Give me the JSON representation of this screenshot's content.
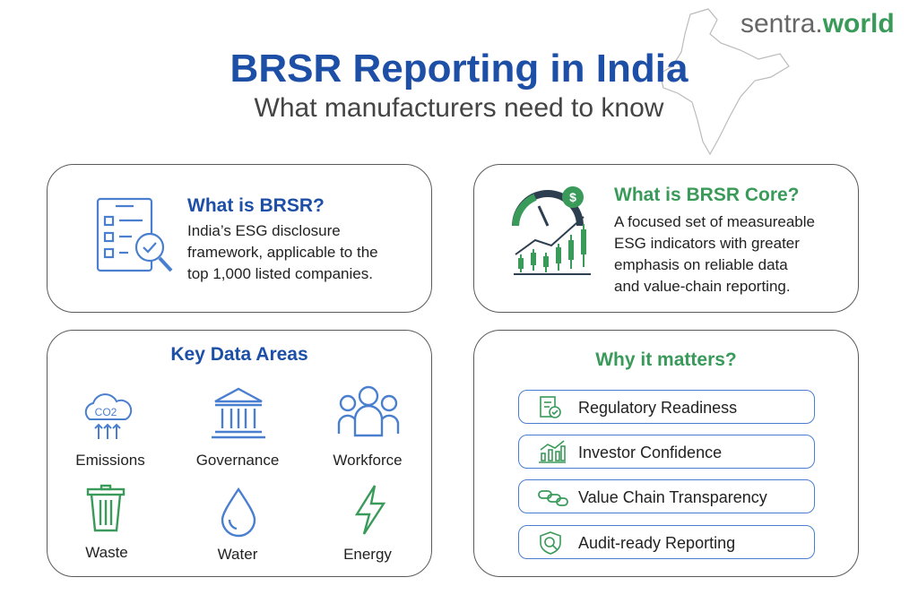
{
  "brand": {
    "prefix": "sentra.",
    "suffix": "world"
  },
  "header": {
    "title": "BRSR Reporting in India",
    "subtitle": "What manufacturers need to know"
  },
  "what_is_brsr": {
    "title": "What is BRSR?",
    "lines": [
      "India’s ESG disclosure",
      "framework, applicable to the",
      "top 1,000 listed companies."
    ]
  },
  "brsr_core": {
    "title": "What is BRSR Core?",
    "lines": [
      "A focused set of measureable",
      "ESG indicators with greater",
      "emphasis on reliable data",
      "and value-chain reporting."
    ]
  },
  "key_data_areas": {
    "title": "Key Data Areas",
    "items": [
      "Emissions",
      "Governance",
      "Workforce",
      "Waste",
      "Water",
      "Energy"
    ],
    "icon_text": "CO2"
  },
  "why_it_matters": {
    "title": "Why it matters?",
    "items": [
      "Regulatory Readiness",
      "Investor Confidence",
      "Value Chain Transparency",
      "Audit-ready Reporting"
    ]
  }
}
